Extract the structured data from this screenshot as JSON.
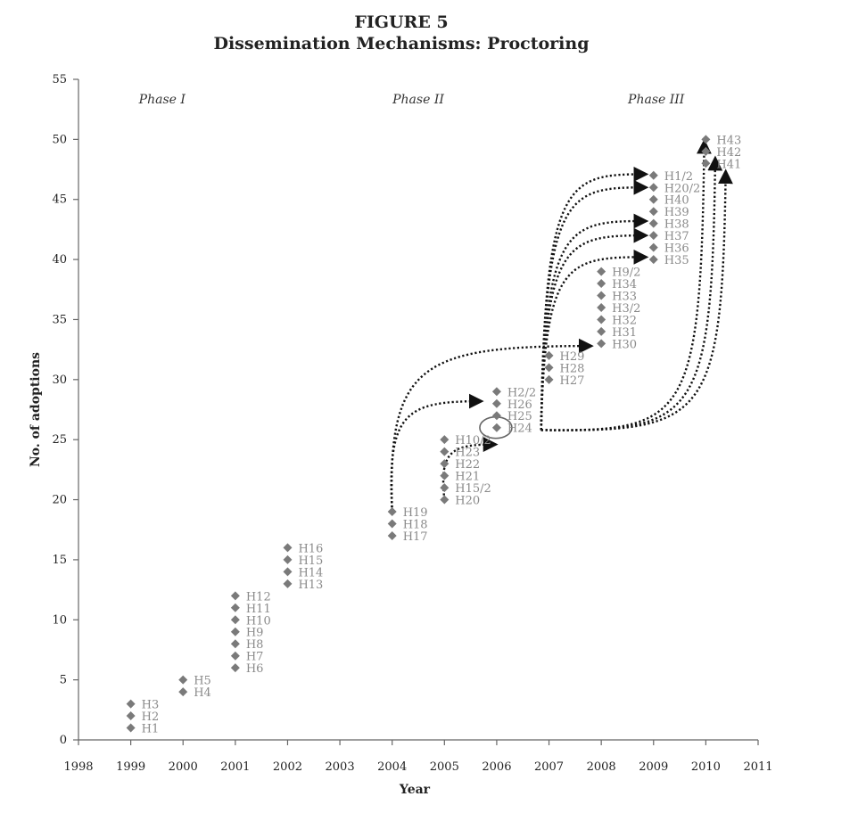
{
  "figure": {
    "number_label": "FIGURE 5",
    "title": "Dissemination Mechanisms: Proctoring"
  },
  "chart_data": {
    "type": "scatter",
    "title": "Dissemination Mechanisms: Proctoring",
    "xlabel": "Year",
    "ylabel": "No. of adoptions",
    "xlim": [
      1998,
      2011
    ],
    "ylim": [
      0,
      55
    ],
    "x_ticks": [
      1998,
      1999,
      2000,
      2001,
      2002,
      2003,
      2004,
      2005,
      2006,
      2007,
      2008,
      2009,
      2010,
      2011
    ],
    "y_ticks": [
      0,
      5,
      10,
      15,
      20,
      25,
      30,
      35,
      40,
      45,
      50,
      55
    ],
    "grid": false,
    "legend": "none",
    "marker": "diamond",
    "marker_color": "#7a7a7a",
    "label_color": "#8a8a8a",
    "phases": [
      {
        "label": "Phase I",
        "x": 1999.6
      },
      {
        "label": "Phase II",
        "x": 2004.5
      },
      {
        "label": "Phase III",
        "x": 2009.05
      }
    ],
    "points": [
      {
        "x": 1999,
        "y": 1,
        "label": "H1"
      },
      {
        "x": 1999,
        "y": 2,
        "label": "H2"
      },
      {
        "x": 1999,
        "y": 3,
        "label": "H3"
      },
      {
        "x": 2000,
        "y": 4,
        "label": "H4"
      },
      {
        "x": 2000,
        "y": 5,
        "label": "H5"
      },
      {
        "x": 2001,
        "y": 6,
        "label": "H6"
      },
      {
        "x": 2001,
        "y": 7,
        "label": "H7"
      },
      {
        "x": 2001,
        "y": 8,
        "label": "H8"
      },
      {
        "x": 2001,
        "y": 9,
        "label": "H9"
      },
      {
        "x": 2001,
        "y": 10,
        "label": "H10"
      },
      {
        "x": 2001,
        "y": 11,
        "label": "H11"
      },
      {
        "x": 2001,
        "y": 12,
        "label": "H12"
      },
      {
        "x": 2002,
        "y": 13,
        "label": "H13"
      },
      {
        "x": 2002,
        "y": 14,
        "label": "H14"
      },
      {
        "x": 2002,
        "y": 15,
        "label": "H15"
      },
      {
        "x": 2002,
        "y": 16,
        "label": "H16"
      },
      {
        "x": 2004,
        "y": 17,
        "label": "H17"
      },
      {
        "x": 2004,
        "y": 18,
        "label": "H18"
      },
      {
        "x": 2004,
        "y": 19,
        "label": "H19"
      },
      {
        "x": 2005,
        "y": 20,
        "label": "H20"
      },
      {
        "x": 2005,
        "y": 21,
        "label": "H15/2"
      },
      {
        "x": 2005,
        "y": 22,
        "label": "H21"
      },
      {
        "x": 2005,
        "y": 23,
        "label": "H22"
      },
      {
        "x": 2005,
        "y": 24,
        "label": "H23"
      },
      {
        "x": 2005,
        "y": 25,
        "label": "H10/2"
      },
      {
        "x": 2006,
        "y": 26,
        "label": "H24"
      },
      {
        "x": 2006,
        "y": 27,
        "label": "H25"
      },
      {
        "x": 2006,
        "y": 28,
        "label": "H26"
      },
      {
        "x": 2006,
        "y": 29,
        "label": "H2/2"
      },
      {
        "x": 2007,
        "y": 30,
        "label": "H27"
      },
      {
        "x": 2007,
        "y": 31,
        "label": "H28"
      },
      {
        "x": 2007,
        "y": 32,
        "label": "H29"
      },
      {
        "x": 2008,
        "y": 33,
        "label": "H30"
      },
      {
        "x": 2008,
        "y": 34,
        "label": "H31"
      },
      {
        "x": 2008,
        "y": 35,
        "label": "H32"
      },
      {
        "x": 2008,
        "y": 36,
        "label": "H3/2"
      },
      {
        "x": 2008,
        "y": 37,
        "label": "H33"
      },
      {
        "x": 2008,
        "y": 38,
        "label": "H34"
      },
      {
        "x": 2008,
        "y": 39,
        "label": "H9/2"
      },
      {
        "x": 2009,
        "y": 40,
        "label": "H35"
      },
      {
        "x": 2009,
        "y": 41,
        "label": "H36"
      },
      {
        "x": 2009,
        "y": 42,
        "label": "H37"
      },
      {
        "x": 2009,
        "y": 43,
        "label": "H38"
      },
      {
        "x": 2009,
        "y": 44,
        "label": "H39"
      },
      {
        "x": 2009,
        "y": 45,
        "label": "H40"
      },
      {
        "x": 2009,
        "y": 46,
        "label": "H20/2"
      },
      {
        "x": 2009,
        "y": 47,
        "label": "H1/2"
      },
      {
        "x": 2010,
        "y": 48,
        "label": "H41"
      },
      {
        "x": 2010,
        "y": 49,
        "label": "H42"
      },
      {
        "x": 2010,
        "y": 50,
        "label": "H43"
      }
    ],
    "highlight": {
      "x": 2006,
      "y": 26,
      "label": "H24"
    },
    "arrows": [
      {
        "from": {
          "x": 2004,
          "y": 19
        },
        "to": {
          "x": 2007.8,
          "y": 32.8
        }
      },
      {
        "from": {
          "x": 2004,
          "y": 19
        },
        "to": {
          "x": 2005.7,
          "y": 28.2
        }
      },
      {
        "from": {
          "x": 2005,
          "y": 20
        },
        "to": {
          "x": 2005.97,
          "y": 24.6
        }
      },
      {
        "from": {
          "x": 2006.85,
          "y": 25.8
        },
        "to": {
          "x": 2008.85,
          "y": 47.1
        }
      },
      {
        "from": {
          "x": 2006.85,
          "y": 25.8
        },
        "to": {
          "x": 2008.85,
          "y": 46.0
        }
      },
      {
        "from": {
          "x": 2006.85,
          "y": 25.8
        },
        "to": {
          "x": 2008.85,
          "y": 43.2
        }
      },
      {
        "from": {
          "x": 2006.85,
          "y": 25.8
        },
        "to": {
          "x": 2008.85,
          "y": 42.0
        }
      },
      {
        "from": {
          "x": 2006.85,
          "y": 25.8
        },
        "to": {
          "x": 2008.85,
          "y": 40.2
        }
      },
      {
        "from": {
          "x": 2006.85,
          "y": 25.8
        },
        "to": {
          "x": 2009.97,
          "y": 49.8
        }
      },
      {
        "from": {
          "x": 2006.85,
          "y": 25.8
        },
        "to": {
          "x": 2010.18,
          "y": 48.4
        }
      },
      {
        "from": {
          "x": 2006.85,
          "y": 25.8
        },
        "to": {
          "x": 2010.38,
          "y": 47.3
        }
      }
    ]
  }
}
